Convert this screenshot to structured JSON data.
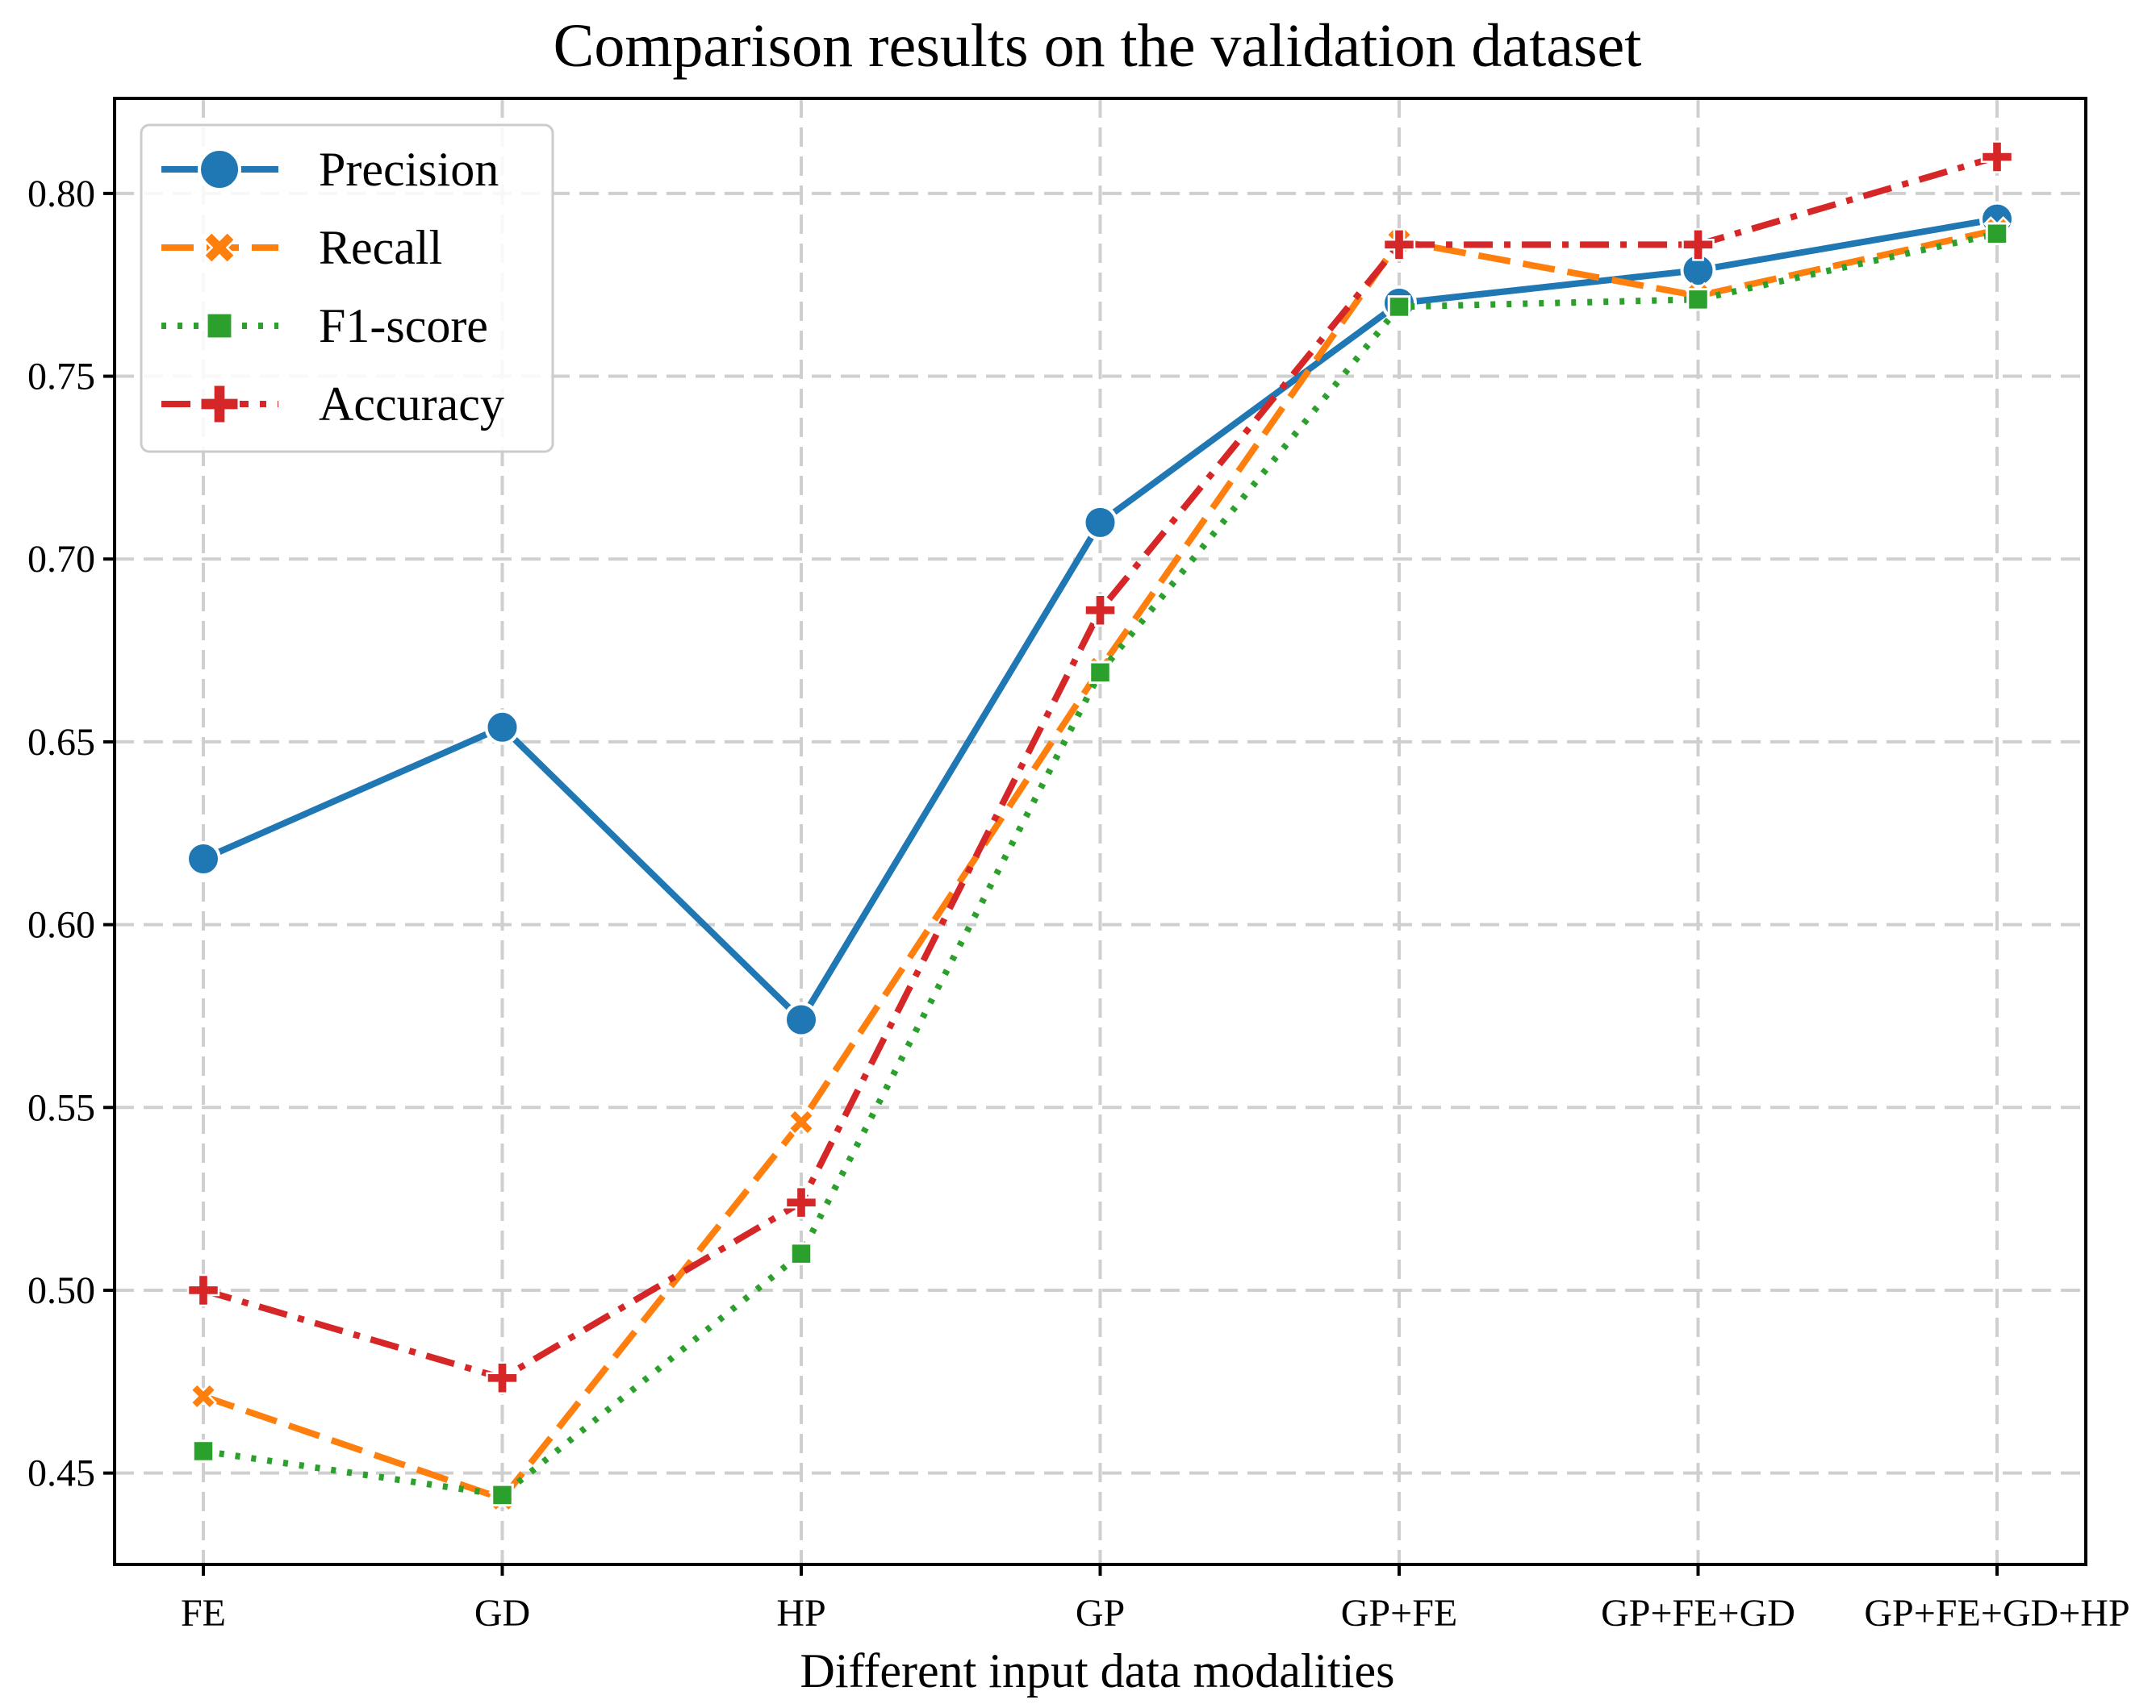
{
  "chart_data": {
    "type": "line",
    "title": "Comparison results on the validation dataset",
    "xlabel": "Different input data modalities",
    "ylabel": "",
    "categories": [
      "FE",
      "GD",
      "HP",
      "GP",
      "GP+FE",
      "GP+FE+GD",
      "GP+FE+GD+HP"
    ],
    "ylim": [
      0.425,
      0.826
    ],
    "yticks": [
      0.45,
      0.5,
      0.55,
      0.6,
      0.65,
      0.7,
      0.75,
      0.8
    ],
    "ytick_labels": [
      "0.45",
      "0.50",
      "0.55",
      "0.60",
      "0.65",
      "0.70",
      "0.75",
      "0.80"
    ],
    "grid": true,
    "legend_position": "top-left",
    "series": [
      {
        "name": "Precision",
        "color": "#1f77b4",
        "marker": "circle",
        "linestyle": "solid",
        "values": [
          0.618,
          0.654,
          0.574,
          0.71,
          0.77,
          0.779,
          0.793
        ]
      },
      {
        "name": "Recall",
        "color": "#ff7f0e",
        "marker": "x",
        "linestyle": "dashed",
        "values": [
          0.471,
          0.443,
          0.546,
          0.67,
          0.787,
          0.772,
          0.79
        ]
      },
      {
        "name": "F1-score",
        "color": "#2ca02c",
        "marker": "square",
        "linestyle": "dotted",
        "values": [
          0.456,
          0.444,
          0.51,
          0.669,
          0.769,
          0.771,
          0.789
        ]
      },
      {
        "name": "Accuracy",
        "color": "#d62728",
        "marker": "plus",
        "linestyle": "dashdot",
        "values": [
          0.5,
          0.476,
          0.524,
          0.686,
          0.786,
          0.786,
          0.81
        ]
      }
    ]
  }
}
